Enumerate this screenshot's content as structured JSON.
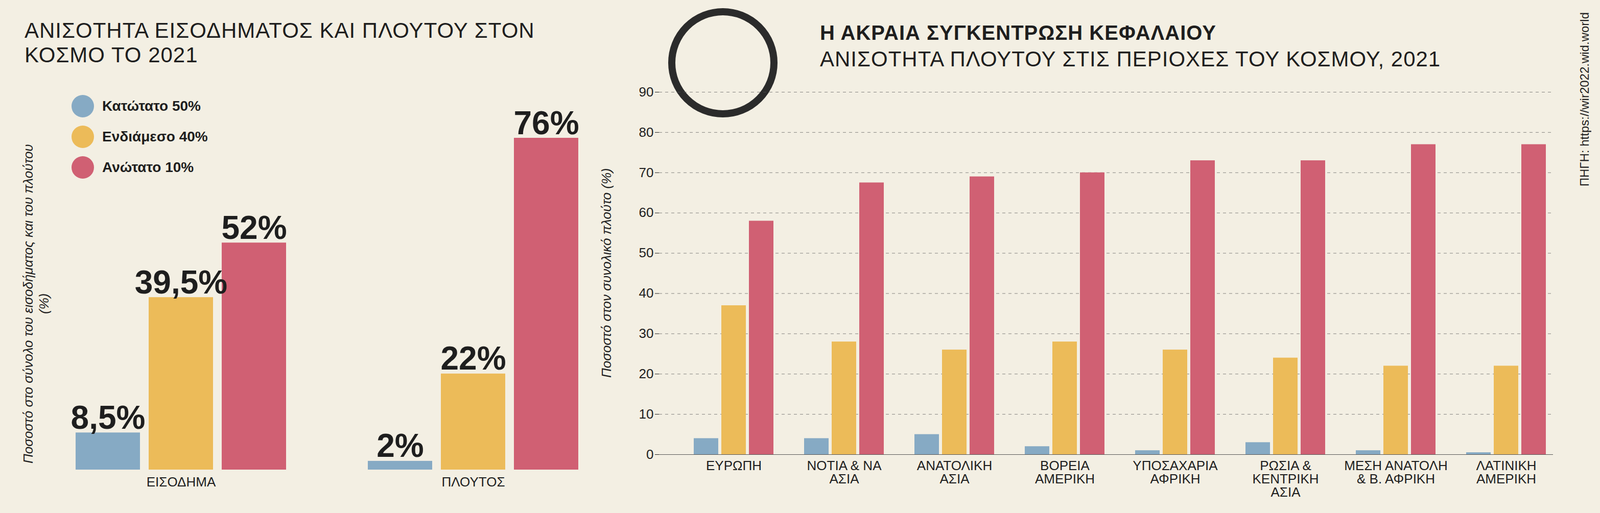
{
  "chart_data": [
    {
      "type": "bar",
      "title": "ΑΝΙΣΟΤΗΤΑ ΕΙΣΟΔΗΜΑΤΟΣ ΚΑΙ ΠΛΟΥΤΟΥ ΣΤΟΝ ΚΟΣΜΟ ΤΟ 2021",
      "y_label": "Ποσοστό στο σύνολο του εισοδήματος και του πλούτου (%)",
      "categories": [
        "ΕΙΣΟΔΗΜΑ",
        "ΠΛΟΥΤΟΣ"
      ],
      "series": [
        {
          "name": "Κατώτατο 50%",
          "color": "#86aac4",
          "values": [
            8.5,
            2
          ],
          "value_labels": [
            "8,5%",
            "2%"
          ]
        },
        {
          "name": "Ενδιάμεσο 40%",
          "color": "#ecbb59",
          "values": [
            39.5,
            22
          ],
          "value_labels": [
            "39,5%",
            "22%"
          ]
        },
        {
          "name": "Ανώτατο 10%",
          "color": "#d06073",
          "values": [
            52,
            76
          ],
          "value_labels": [
            "52%",
            "76%"
          ]
        }
      ],
      "data_labels": true,
      "tick_labels": "x",
      "legend": "top-left"
    },
    {
      "type": "bar",
      "title": "Η ΑΚΡΑΙΑ ΣΥΓΚΕΝΤΡΩΣΗ ΚΕΦΑΛΑΙΟΥ",
      "subtitle": "ΑΝΙΣΟΤΗΤΑ ΠΛΟΥΤΟΥ ΣΤΙΣ ΠΕΡΙΟΧΕΣ ΤΟΥ ΚΟΣΜΟΥ, 2021",
      "y_label": "Ποσοστό στον συνολικό πλούτο (%)",
      "categories": [
        "ΕΥΡΩΠΗ",
        "ΝΟΤΙΑ & ΝΑ ΑΣΙΑ",
        "ΑΝΑΤΟΛΙΚΗ ΑΣΙΑ",
        "ΒΟΡΕΙΑ ΑΜΕΡΙΚΗ",
        "ΥΠΟΣΑΧΑΡΙΑ ΑΦΡΙΚΗ",
        "ΡΩΣΙΑ & ΚΕΝΤΡΙΚΗ ΑΣΙΑ",
        "ΜΕΣΗ ΑΝΑΤΟΛΗ & Β. ΑΦΡΙΚΗ",
        "ΛΑΤΙΝΙΚΗ ΑΜΕΡΙΚΗ"
      ],
      "series": [
        {
          "name": "Κατώτατο 50%",
          "color": "#86aac4",
          "values": [
            4,
            4,
            5,
            2,
            1,
            3,
            1,
            0.5
          ]
        },
        {
          "name": "Ενδιάμεσο 40%",
          "color": "#ecbb59",
          "values": [
            37,
            28,
            26,
            28,
            26,
            24,
            22,
            22
          ]
        },
        {
          "name": "Ανώτατο 10%",
          "color": "#d06073",
          "values": [
            58,
            67.5,
            69,
            70,
            73,
            73,
            77,
            77
          ]
        }
      ],
      "ylim": [
        0,
        90
      ],
      "yticks": [
        0,
        10,
        20,
        30,
        40,
        50,
        60,
        70,
        80,
        90
      ],
      "grid": true
    }
  ],
  "source": "ΠΗΓΗ: https://wir2022.wid.world"
}
